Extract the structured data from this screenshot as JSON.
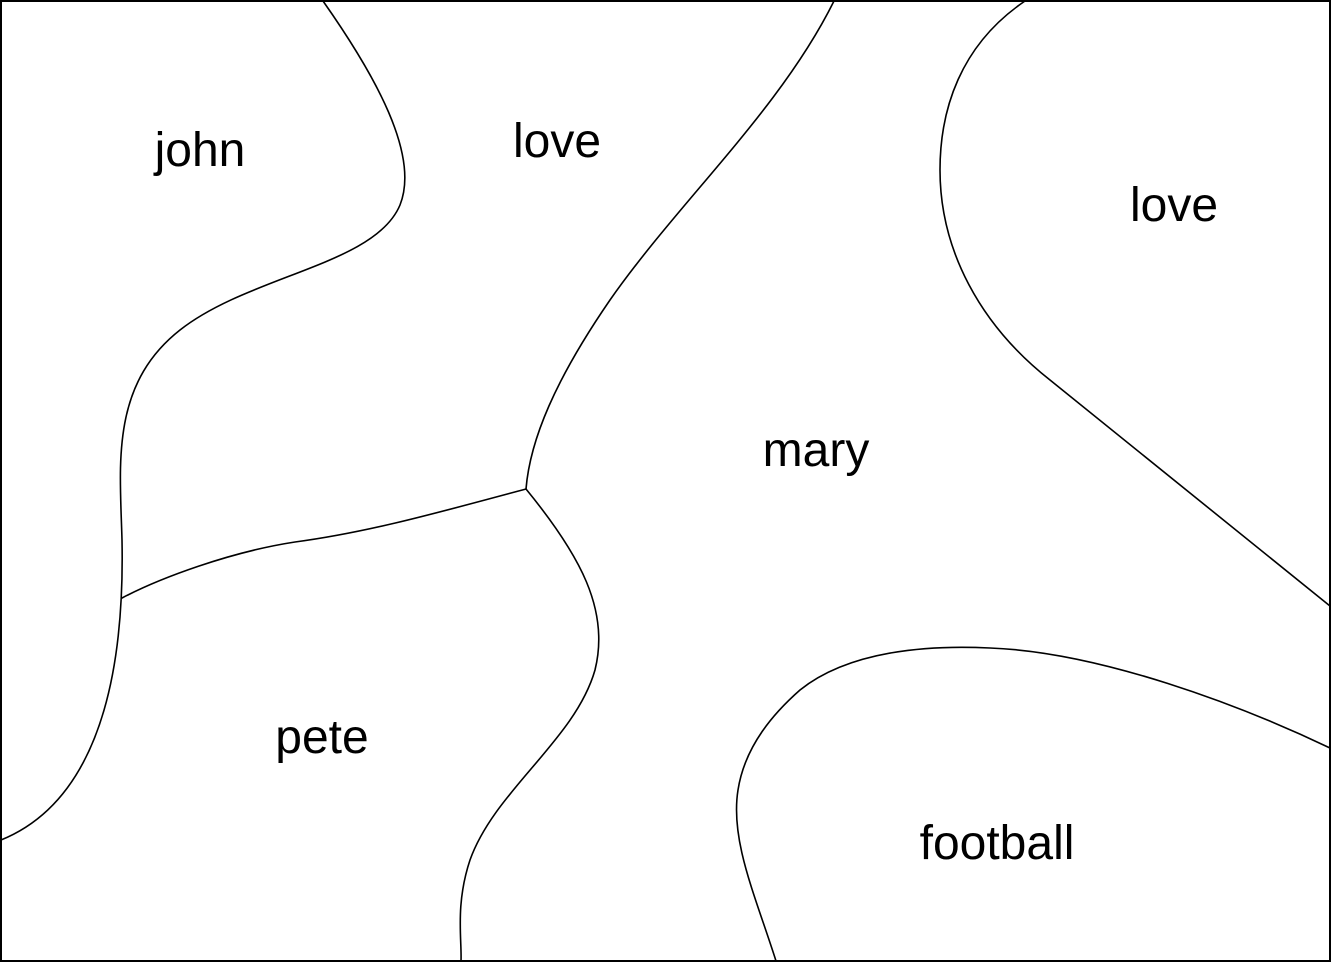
{
  "regions": [
    {
      "id": "john",
      "label": "john"
    },
    {
      "id": "love-1",
      "label": "love"
    },
    {
      "id": "love-2",
      "label": "love"
    },
    {
      "id": "mary",
      "label": "mary"
    },
    {
      "id": "pete",
      "label": "pete"
    },
    {
      "id": "football",
      "label": "football"
    }
  ],
  "colors": {
    "stroke": "#000000",
    "background": "#ffffff"
  }
}
